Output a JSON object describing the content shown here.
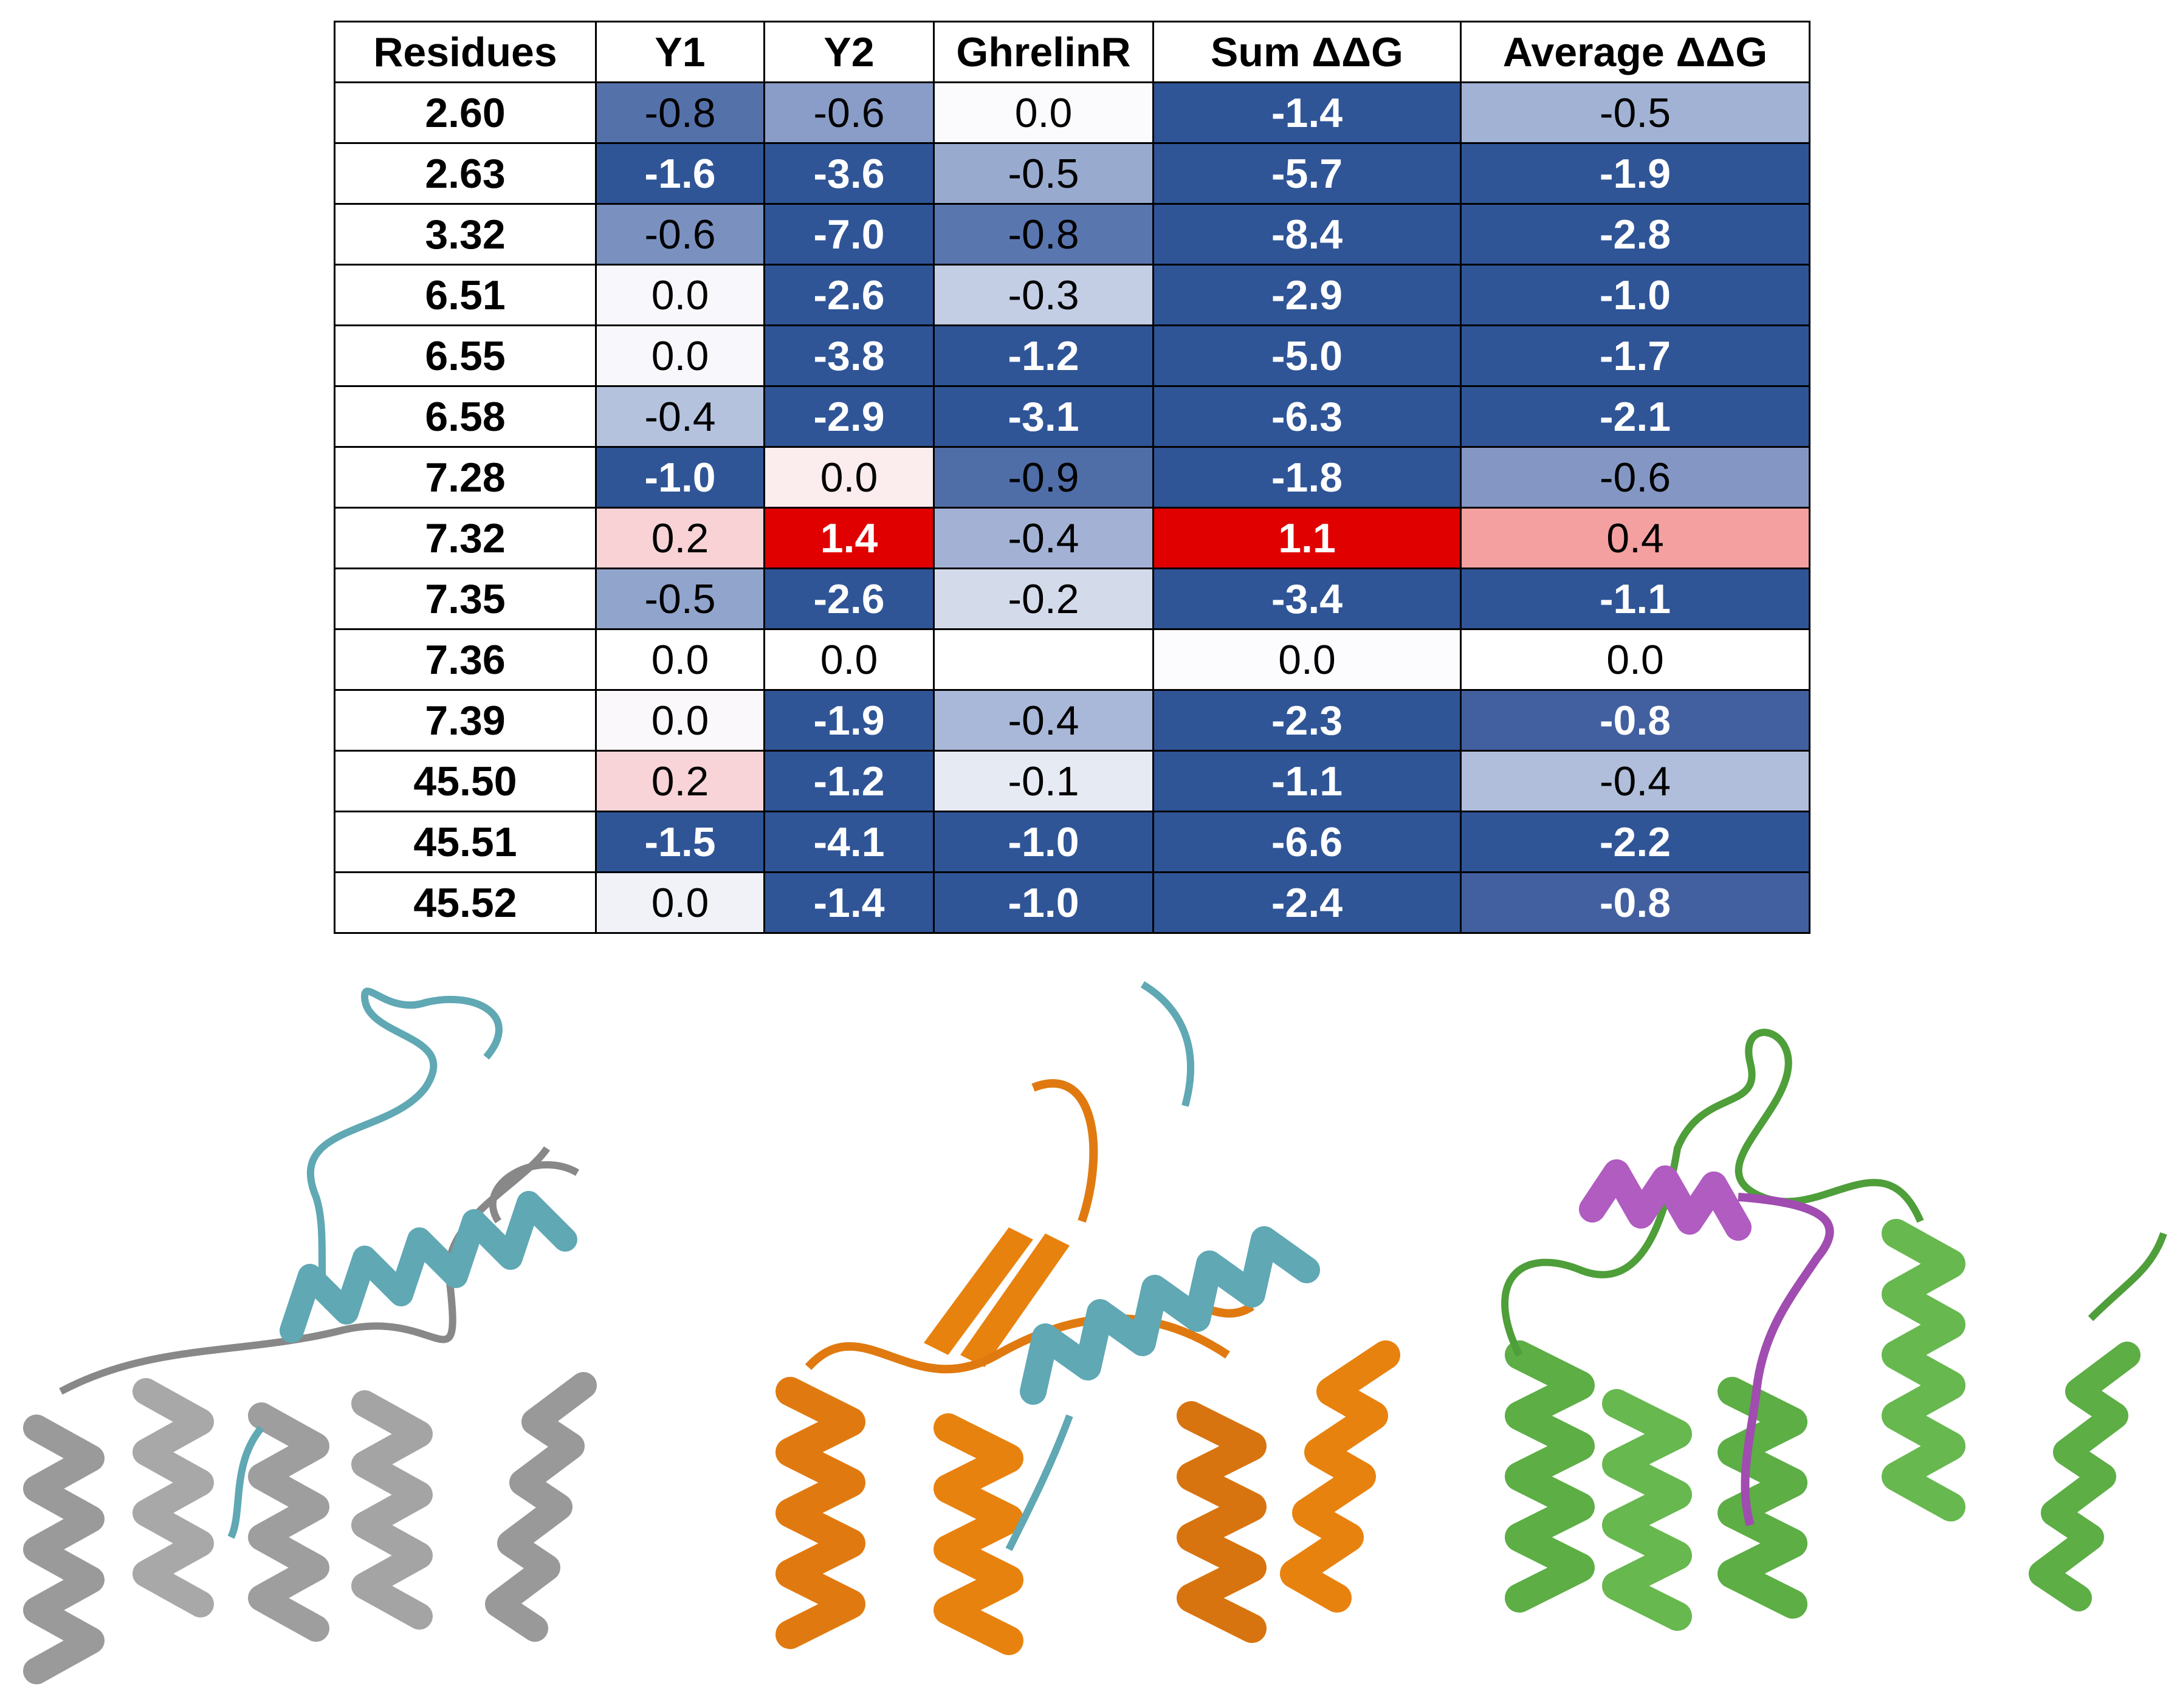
{
  "table": {
    "header": [
      "Residues",
      "Y1",
      "Y2",
      "GhrelinR",
      "Sum ΔΔG",
      "Average ΔΔG"
    ],
    "rows": [
      {
        "residue": "2.60",
        "cells": [
          "-0.8",
          "-0.6",
          "0.0",
          "-1.4",
          "-0.5"
        ],
        "colors": [
          "#5571AA",
          "#8A9DC8",
          "#FBFBFD",
          "#2F5597",
          "#A2B2D4"
        ]
      },
      {
        "residue": "2.63",
        "cells": [
          "-1.6",
          "-3.6",
          "-0.5",
          "-5.7",
          "-1.9"
        ],
        "colors": [
          "#2F5597",
          "#2F5597",
          "#99AACF",
          "#2F5597",
          "#2F5597"
        ]
      },
      {
        "residue": "3.32",
        "cells": [
          "-0.6",
          "-7.0",
          "-0.8",
          "-8.4",
          "-2.8"
        ],
        "colors": [
          "#7A91C0",
          "#2F5597",
          "#5A76AE",
          "#2F5597",
          "#2F5597"
        ]
      },
      {
        "residue": "6.51",
        "cells": [
          "0.0",
          "-2.6",
          "-0.3",
          "-2.9",
          "-1.0"
        ],
        "colors": [
          "#F8F8FC",
          "#2F5597",
          "#C3CDE3",
          "#2F5597",
          "#2F5597"
        ]
      },
      {
        "residue": "6.55",
        "cells": [
          "0.0",
          "-3.8",
          "-1.2",
          "-5.0",
          "-1.7"
        ],
        "colors": [
          "#F8F8FC",
          "#2F5597",
          "#2F5597",
          "#2F5597",
          "#2F5597"
        ]
      },
      {
        "residue": "6.58",
        "cells": [
          "-0.4",
          "-2.9",
          "-3.1",
          "-6.3",
          "-2.1"
        ],
        "colors": [
          "#B4C2DE",
          "#2F5597",
          "#2F5597",
          "#2F5597",
          "#2F5597"
        ]
      },
      {
        "residue": "7.28",
        "cells": [
          "-1.0",
          "0.0",
          "-0.9",
          "-1.8",
          "-0.6"
        ],
        "colors": [
          "#2F5597",
          "#FBECEE",
          "#4F6DA7",
          "#2F5597",
          "#8497C4"
        ]
      },
      {
        "residue": "7.32",
        "cells": [
          "0.2",
          "1.4",
          "-0.4",
          "1.1",
          "0.4"
        ],
        "colors": [
          "#F8D2D5",
          "#E00000",
          "#A3B2D4",
          "#E00000",
          "#F4A0A0"
        ]
      },
      {
        "residue": "7.35",
        "cells": [
          "-0.5",
          "-2.6",
          "-0.2",
          "-3.4",
          "-1.1"
        ],
        "colors": [
          "#91A4CC",
          "#2F5597",
          "#D3DBEB",
          "#2F5597",
          "#2F5597"
        ]
      },
      {
        "residue": "7.36",
        "cells": [
          "0.0",
          "0.0",
          null,
          "0.0",
          "0.0"
        ],
        "colors": [
          "#FFFFFF",
          "#FFFFFF",
          "#FFFFFF",
          "#FCFCFE",
          "#FFFFFF"
        ]
      },
      {
        "residue": "7.39",
        "cells": [
          "0.0",
          "-1.9",
          "-0.4",
          "-2.3",
          "-0.8"
        ],
        "colors": [
          "#FBF8FB",
          "#2F5597",
          "#A9B8D8",
          "#2F5597",
          "#42609F"
        ]
      },
      {
        "residue": "45.50",
        "cells": [
          "0.2",
          "-1.2",
          "-0.1",
          "-1.1",
          "-0.4"
        ],
        "colors": [
          "#F8D3D7",
          "#2F5597",
          "#E6EAF3",
          "#2F5597",
          "#B0BEDB"
        ]
      },
      {
        "residue": "45.51",
        "cells": [
          "-1.5",
          "-4.1",
          "-1.0",
          "-6.6",
          "-2.2"
        ],
        "colors": [
          "#2F5597",
          "#2F5597",
          "#2F5597",
          "#2F5597",
          "#2F5597"
        ]
      },
      {
        "residue": "45.52",
        "cells": [
          "0.0",
          "-1.4",
          "-1.0",
          "-2.4",
          "-0.8"
        ],
        "colors": [
          "#F0F2F8",
          "#2F5597",
          "#2F5597",
          "#2F5597",
          "#42609F"
        ]
      }
    ]
  }
}
